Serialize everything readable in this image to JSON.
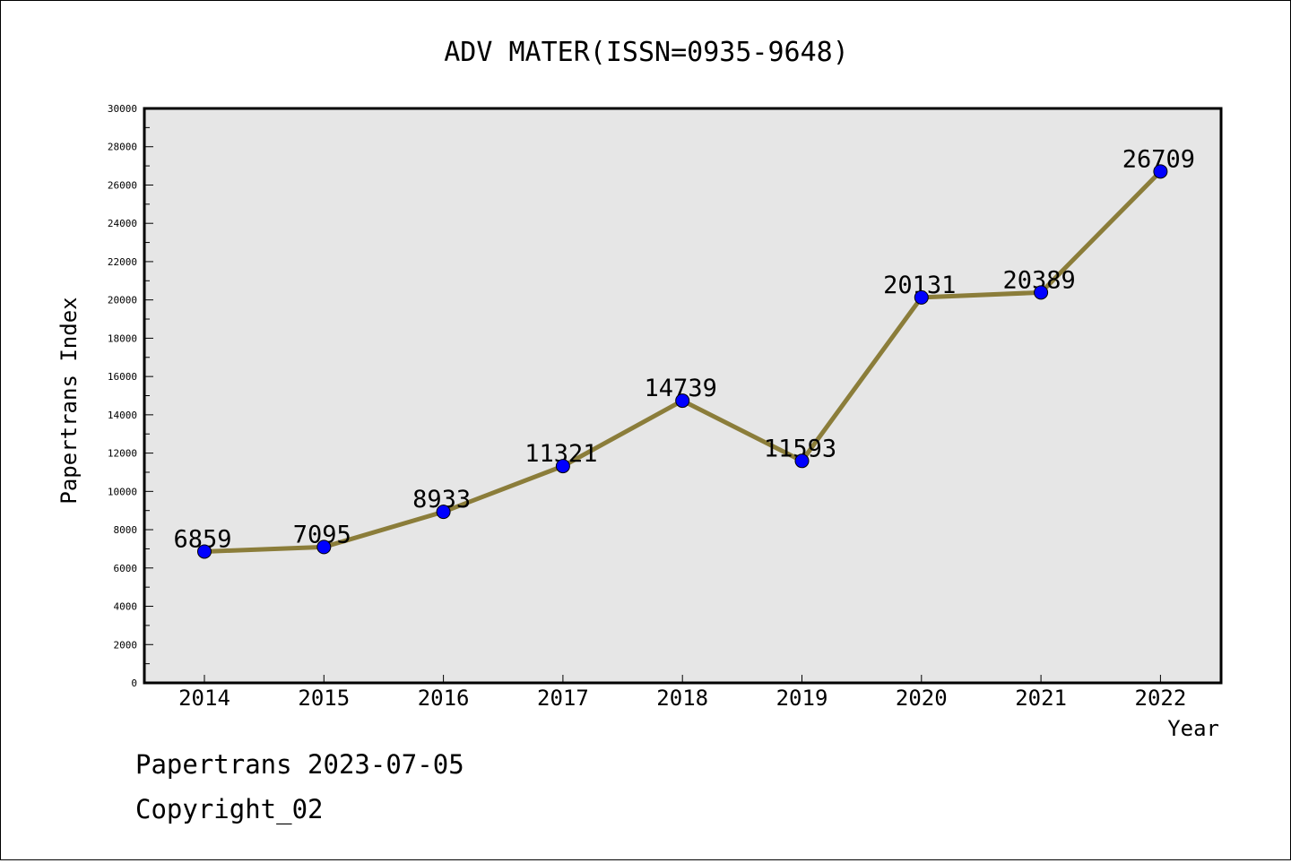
{
  "chart_data": {
    "type": "line",
    "title": "ADV MATER(ISSN=0935-9648)",
    "xlabel": "Year",
    "ylabel": "Papertrans Index",
    "categories": [
      "2014",
      "2015",
      "2016",
      "2017",
      "2018",
      "2019",
      "2020",
      "2021",
      "2022"
    ],
    "series": [
      {
        "name": "Papertrans Index",
        "values": [
          6859,
          7095,
          8933,
          11321,
          14739,
          11593,
          20131,
          20389,
          26709
        ]
      }
    ],
    "data_labels": [
      "6859",
      "7095",
      "8933",
      "11321",
      "14739",
      "11593",
      "20131",
      "20389",
      "26709"
    ],
    "ylim": [
      0,
      30000
    ],
    "yticks": [
      "0",
      "2000",
      "4000",
      "6000",
      "8000",
      "10000",
      "12000",
      "14000",
      "16000",
      "18000",
      "20000",
      "22000",
      "24000",
      "26000",
      "28000",
      "30000"
    ],
    "grid": false,
    "legend": "none",
    "line_color": "#8b7d3a",
    "marker_color": "#0000ff",
    "plot_background": "#e6e6e6"
  },
  "footer": {
    "date_line": "Papertrans 2023-07-05",
    "copyright_line": "Copyright_02"
  }
}
